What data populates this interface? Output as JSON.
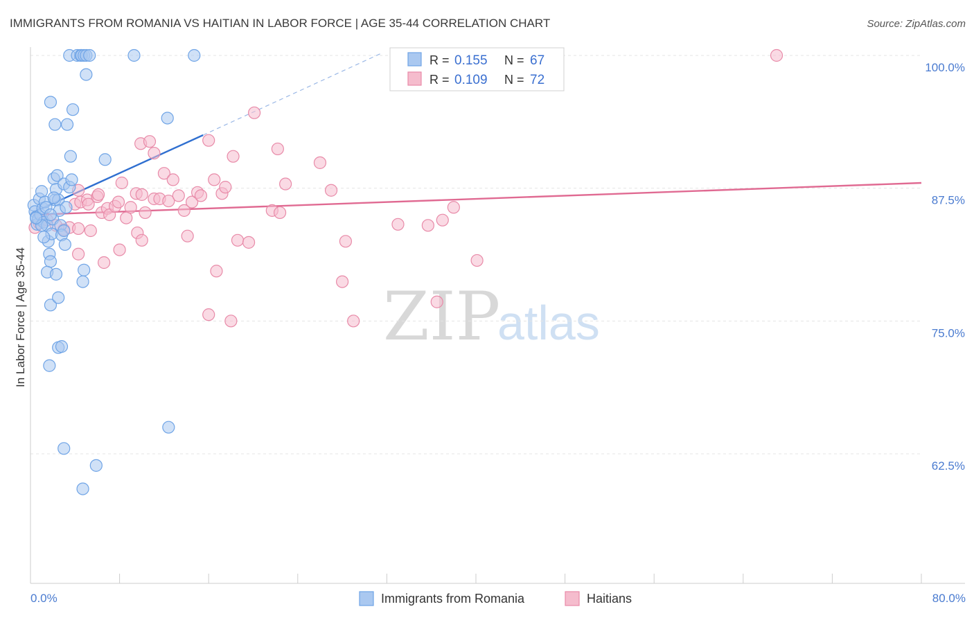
{
  "chart_data": {
    "type": "scatter",
    "title": "IMMIGRANTS FROM ROMANIA VS HAITIAN IN LABOR FORCE | AGE 35-44 CORRELATION CHART",
    "source": "Source: ZipAtlas.com",
    "ylabel": "In Labor Force | Age 35-44",
    "xlim": [
      0,
      80
    ],
    "ylim": [
      50,
      101.5
    ],
    "x_tick_labels": [
      "0.0%",
      "80.0%"
    ],
    "y_ticks": [
      62.5,
      75.0,
      87.5,
      100.0
    ],
    "y_tick_labels": [
      "62.5%",
      "75.0%",
      "87.5%",
      "100.0%"
    ],
    "grid": true,
    "watermark": {
      "zip": "ZIP",
      "atlas": "atlas"
    },
    "legend": {
      "position": "top-center",
      "entries": [
        {
          "r_label": "R =",
          "r_value": "0.155",
          "n_label": "N =",
          "n_value": "67"
        },
        {
          "r_label": "R =",
          "r_value": "0.109",
          "n_label": "N =",
          "n_value": "72"
        }
      ]
    },
    "series": [
      {
        "name": "Immigrants from Romania",
        "color": "#6fa4e6",
        "fill": "#aac8f0",
        "trend": {
          "x0": 0.2,
          "y0": 85.2,
          "x1": 15.5,
          "y1": 92.5,
          "dashed_to_x": 31.5,
          "dashed_to_y": 100.2,
          "color": "#2f6fd0"
        },
        "points": [
          [
            0.3,
            85.9
          ],
          [
            0.4,
            85.3
          ],
          [
            0.5,
            84.8
          ],
          [
            0.6,
            84.1
          ],
          [
            0.7,
            84.6
          ],
          [
            0.8,
            86.5
          ],
          [
            0.9,
            85.0
          ],
          [
            1.0,
            87.2
          ],
          [
            1.1,
            85.6
          ],
          [
            1.2,
            84.3
          ],
          [
            1.3,
            86.2
          ],
          [
            1.4,
            85.7
          ],
          [
            1.5,
            84.0
          ],
          [
            1.6,
            82.5
          ],
          [
            1.7,
            81.3
          ],
          [
            1.8,
            80.6
          ],
          [
            1.9,
            83.2
          ],
          [
            2.0,
            84.6
          ],
          [
            2.1,
            88.4
          ],
          [
            2.2,
            86.4
          ],
          [
            2.3,
            87.4
          ],
          [
            2.4,
            88.7
          ],
          [
            2.5,
            86.4
          ],
          [
            2.6,
            85.4
          ],
          [
            2.7,
            84.0
          ],
          [
            2.8,
            83.1
          ],
          [
            3.0,
            87.9
          ],
          [
            3.2,
            85.7
          ],
          [
            3.5,
            87.6
          ],
          [
            3.7,
            88.3
          ],
          [
            1.5,
            79.6
          ],
          [
            2.3,
            79.4
          ],
          [
            1.8,
            76.5
          ],
          [
            2.5,
            77.2
          ],
          [
            2.5,
            72.5
          ],
          [
            2.8,
            72.6
          ],
          [
            1.7,
            70.8
          ],
          [
            4.8,
            79.8
          ],
          [
            4.7,
            78.7
          ],
          [
            1.8,
            95.6
          ],
          [
            2.2,
            93.5
          ],
          [
            3.3,
            93.5
          ],
          [
            3.8,
            94.9
          ],
          [
            3.6,
            90.5
          ],
          [
            6.7,
            90.2
          ],
          [
            12.3,
            94.1
          ],
          [
            5.0,
            98.2
          ],
          [
            3.5,
            100.0
          ],
          [
            4.2,
            100.0
          ],
          [
            4.5,
            100.0
          ],
          [
            4.6,
            100.0
          ],
          [
            4.8,
            100.0
          ],
          [
            5.0,
            100.0
          ],
          [
            5.3,
            100.0
          ],
          [
            9.3,
            100.0
          ],
          [
            14.7,
            100.0
          ],
          [
            3.0,
            63.0
          ],
          [
            5.9,
            61.4
          ],
          [
            4.7,
            59.2
          ],
          [
            12.4,
            65.0
          ],
          [
            1.0,
            84.0
          ],
          [
            0.5,
            84.7
          ],
          [
            3.1,
            82.2
          ],
          [
            3.0,
            83.5
          ],
          [
            1.8,
            85.0
          ],
          [
            1.2,
            82.9
          ],
          [
            2.1,
            86.6
          ]
        ]
      },
      {
        "name": "Haitians",
        "color": "#e88aa8",
        "fill": "#f5bccd",
        "trend": {
          "x0": 0.2,
          "y0": 85.0,
          "x1": 80,
          "y1": 88.0,
          "color": "#e06a92"
        },
        "points": [
          [
            0.4,
            83.8
          ],
          [
            0.8,
            84.2
          ],
          [
            1.5,
            84.5
          ],
          [
            2.3,
            84.0
          ],
          [
            3.0,
            83.6
          ],
          [
            3.5,
            83.8
          ],
          [
            4.0,
            86.0
          ],
          [
            4.5,
            86.2
          ],
          [
            5.1,
            86.4
          ],
          [
            5.4,
            83.5
          ],
          [
            5.2,
            86.0
          ],
          [
            6.0,
            86.7
          ],
          [
            6.4,
            85.2
          ],
          [
            6.9,
            85.6
          ],
          [
            7.1,
            85.0
          ],
          [
            7.6,
            85.8
          ],
          [
            7.9,
            86.2
          ],
          [
            8.6,
            84.7
          ],
          [
            9.0,
            85.7
          ],
          [
            9.5,
            87.0
          ],
          [
            10.0,
            86.9
          ],
          [
            10.3,
            85.2
          ],
          [
            11.1,
            86.5
          ],
          [
            11.6,
            86.5
          ],
          [
            12.0,
            88.9
          ],
          [
            12.4,
            86.3
          ],
          [
            12.8,
            88.3
          ],
          [
            13.3,
            86.8
          ],
          [
            13.8,
            85.4
          ],
          [
            14.5,
            86.2
          ],
          [
            15.0,
            87.1
          ],
          [
            15.3,
            86.8
          ],
          [
            16.5,
            88.3
          ],
          [
            17.2,
            87.0
          ],
          [
            17.5,
            87.6
          ],
          [
            4.3,
            87.3
          ],
          [
            6.1,
            86.9
          ],
          [
            8.2,
            88.0
          ],
          [
            9.9,
            91.7
          ],
          [
            10.7,
            91.9
          ],
          [
            11.1,
            90.8
          ],
          [
            16.0,
            92.0
          ],
          [
            18.2,
            90.5
          ],
          [
            20.1,
            94.6
          ],
          [
            22.2,
            91.2
          ],
          [
            26.0,
            89.9
          ],
          [
            21.7,
            85.4
          ],
          [
            22.4,
            85.2
          ],
          [
            22.9,
            87.9
          ],
          [
            27.0,
            87.3
          ],
          [
            33.0,
            84.1
          ],
          [
            35.7,
            84.0
          ],
          [
            37.0,
            84.5
          ],
          [
            38.0,
            85.7
          ],
          [
            40.1,
            80.7
          ],
          [
            28.3,
            82.5
          ],
          [
            18.6,
            82.6
          ],
          [
            19.6,
            82.4
          ],
          [
            14.1,
            83.0
          ],
          [
            9.6,
            83.3
          ],
          [
            10.0,
            82.6
          ],
          [
            8.0,
            81.7
          ],
          [
            6.6,
            80.5
          ],
          [
            4.3,
            81.3
          ],
          [
            16.7,
            79.7
          ],
          [
            28.0,
            78.7
          ],
          [
            16.0,
            75.6
          ],
          [
            18.0,
            75.0
          ],
          [
            29.0,
            75.0
          ],
          [
            36.5,
            76.8
          ],
          [
            67.0,
            100.0
          ],
          [
            4.3,
            83.7
          ]
        ]
      }
    ]
  },
  "bottom_legend": [
    {
      "label": "Immigrants from Romania"
    },
    {
      "label": "Haitians"
    }
  ]
}
